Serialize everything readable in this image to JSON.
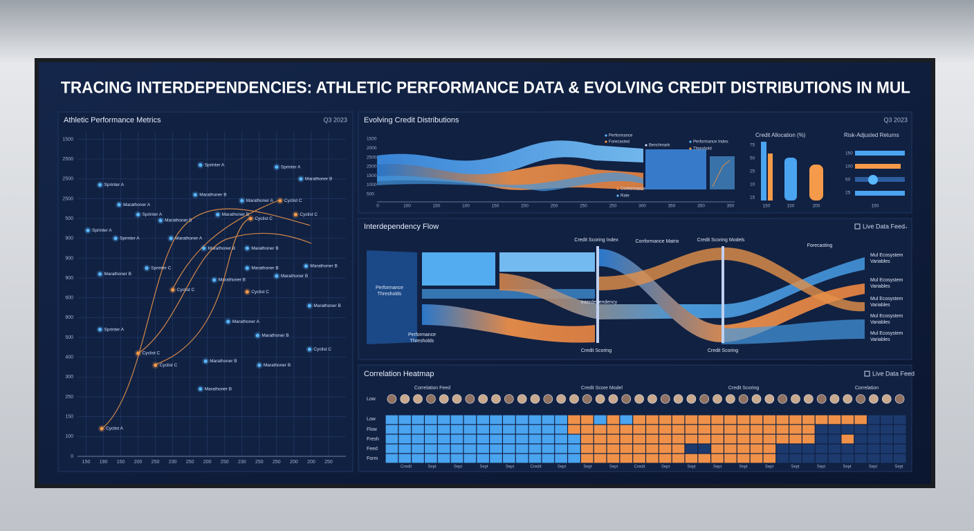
{
  "header": {
    "title": "TRACING INTERDEPENDENCIES: ATHLETIC PERFORMANCE DATA & EVOLVING CREDIT DISTRIBUTIONS IN MUL"
  },
  "chart_data": {
    "type": "scatter",
    "title": "Athletic Performance Metrics",
    "subtitle": "Q3 2023",
    "x": [
      0.8,
      6.6,
      11.0,
      12.4,
      6.3,
      1.9,
      9.0,
      11.2,
      3.0,
      4.3,
      7.6,
      9.5,
      12.1,
      0.1,
      1.7,
      4.9,
      6.8,
      9.3,
      3.5,
      9.3,
      12.7,
      0.8,
      7.4,
      11.0,
      5.0,
      9.3,
      12.9,
      8.2,
      0.8,
      9.9,
      12.9,
      3.0,
      4.0,
      6.9,
      10.0,
      6.6,
      0.9
    ],
    "values": [
      13.7,
      14.7,
      14.6,
      14.0,
      13.2,
      12.7,
      12.9,
      12.9,
      12.2,
      11.9,
      12.2,
      12.0,
      12.2,
      11.4,
      11.0,
      11.0,
      10.5,
      10.5,
      9.5,
      9.5,
      9.6,
      9.2,
      8.9,
      9.1,
      8.4,
      8.3,
      7.6,
      6.8,
      6.4,
      6.1,
      5.4,
      5.2,
      4.6,
      4.8,
      4.6,
      3.4,
      1.4
    ],
    "point_labels": [
      "Sprinter A",
      "Sprinter A",
      "Sprinter A",
      "Marathoner B",
      "Marathoner B",
      "Marathoner A",
      "Marathoner A",
      "Cyclist C",
      "Sprinter A",
      "Marathoner B",
      "Marathoner B",
      "Cyclist C",
      "Cyclist C",
      "Sprinter A",
      "Sprinter A",
      "Marathoner A",
      "Marathoner B",
      "Marathoner B",
      "Sprinter C",
      "Marathoner B",
      "Marathoner B",
      "Marathoner B",
      "Marathoner B",
      "Marathoner B",
      "Cyclist C",
      "Cyclist C",
      "Marathoner B",
      "Marathoner A",
      "Sprinter A",
      "Marathoner B",
      "Cyclist C",
      "Cyclist C",
      "Cyclist C",
      "Marathoner B",
      "Marathoner B",
      "Marathoner B",
      "Cyclist A"
    ],
    "point_colors": [
      "#5ab8ff",
      "#5ab8ff",
      "#5ab8ff",
      "#5ab8ff",
      "#5ab8ff",
      "#5ab8ff",
      "#5ab8ff",
      "#f59a4a",
      "#5ab8ff",
      "#5ab8ff",
      "#5ab8ff",
      "#f59a4a",
      "#f59a4a",
      "#5ab8ff",
      "#5ab8ff",
      "#5ab8ff",
      "#5ab8ff",
      "#5ab8ff",
      "#5ab8ff",
      "#5ab8ff",
      "#5ab8ff",
      "#5ab8ff",
      "#5ab8ff",
      "#5ab8ff",
      "#f59a4a",
      "#f59a4a",
      "#5ab8ff",
      "#5ab8ff",
      "#5ab8ff",
      "#5ab8ff",
      "#5ab8ff",
      "#f59a4a",
      "#f59a4a",
      "#5ab8ff",
      "#5ab8ff",
      "#5ab8ff",
      "#f59a4a"
    ],
    "xlim": [
      -0.5,
      15
    ],
    "ylim": [
      0,
      16.4
    ],
    "xticks": [
      {
        "value": 0,
        "label": "150"
      },
      {
        "value": 1,
        "label": "190"
      },
      {
        "value": 2,
        "label": "150"
      },
      {
        "value": 3,
        "label": "200"
      },
      {
        "value": 4,
        "label": "250"
      },
      {
        "value": 5,
        "label": "230"
      },
      {
        "value": 6,
        "label": "250"
      },
      {
        "value": 7,
        "label": "200"
      },
      {
        "value": 8,
        "label": "250"
      },
      {
        "value": 9,
        "label": "230"
      },
      {
        "value": 10,
        "label": "250"
      },
      {
        "value": 11,
        "label": "250"
      },
      {
        "value": 12,
        "label": "200"
      },
      {
        "value": 13,
        "label": "200"
      },
      {
        "value": 14,
        "label": "250"
      }
    ],
    "yticks": [
      {
        "value": 0,
        "label": "0"
      },
      {
        "value": 1,
        "label": "100"
      },
      {
        "value": 2,
        "label": "150"
      },
      {
        "value": 3,
        "label": "250"
      },
      {
        "value": 4,
        "label": "300"
      },
      {
        "value": 5,
        "label": "400"
      },
      {
        "value": 6,
        "label": "500"
      },
      {
        "value": 7,
        "label": "900"
      },
      {
        "value": 8,
        "label": "600"
      },
      {
        "value": 9,
        "label": "900"
      },
      {
        "value": 10,
        "label": "900"
      },
      {
        "value": 11,
        "label": "900"
      },
      {
        "value": 12,
        "label": "500"
      },
      {
        "value": 13,
        "label": "2500"
      },
      {
        "value": 14,
        "label": "2500"
      },
      {
        "value": 15,
        "label": "2500"
      },
      {
        "value": 16,
        "label": "1500"
      }
    ],
    "grid": true
  },
  "credit_panel": {
    "title": "Evolving Credit Distributions",
    "period": "Q3 2023",
    "y_labels": [
      "1500",
      "2000",
      "2500",
      "2500",
      "1500",
      "1000",
      "500"
    ],
    "x_labels": [
      "0",
      "100",
      "150",
      "100",
      "150",
      "200",
      "250",
      "250",
      "250",
      "300",
      "350",
      "350",
      "350"
    ],
    "legend": [
      "Performance",
      "Forecasted",
      "Benchmark",
      "Performance Index",
      "Threshold",
      "Conformance",
      "Rate"
    ],
    "allocation_title": "Credit Allocation (%)",
    "allocation_y_labels": [
      "75",
      "50",
      "25",
      "10",
      "15"
    ],
    "allocation_x_labels": [
      "150",
      "150",
      "200"
    ],
    "returns_title": "Risk-Adjusted Returns",
    "returns_y_labels": [
      "150",
      "100",
      "50",
      "25"
    ],
    "returns_x_label": "150"
  },
  "flow": {
    "title": "Interdependency Flow",
    "feed": "Live Data Feed",
    "labels": [
      [
        "Performance",
        "Thresholds"
      ],
      [
        "Performance",
        "Thresholds"
      ],
      [
        "Credit Scoring Index"
      ],
      [
        "Conformance Matrix"
      ],
      [
        "Credit Scoring Models"
      ],
      [
        "Forecasting"
      ],
      [
        "Interdependency"
      ],
      [
        "Credit Scoring"
      ],
      [
        "Credit Scoring"
      ]
    ],
    "outputs": [
      [
        "Mul Ecosystem",
        "Variables"
      ],
      [
        "Mul Ecosystem",
        "Variables"
      ],
      [
        "Mul Ecosystem",
        "Variables"
      ],
      [
        "Mul Ecosystem",
        "Variables"
      ],
      [
        "Mul Ecosystem",
        "Variables"
      ]
    ]
  },
  "heatmap": {
    "title": "Correlation Heatmap",
    "feed": "Live Data Feed",
    "groups": [
      "Correlation Feed",
      "Credit Score Model",
      "Credit Scoring",
      "Correlation"
    ],
    "rows": [
      "Low",
      "Low",
      "Flow",
      "Fresh",
      "Feed",
      "Form"
    ],
    "columns": [
      "Credit",
      "Sept",
      "Sept",
      "Sept",
      "Sept",
      "Credit",
      "Sept",
      "Sept",
      "Sept",
      "Credit",
      "Sept",
      "Sept",
      "Sept",
      "Sept",
      "Sept",
      "Sept",
      "Sept",
      "Sept",
      "Sept",
      "Sept"
    ]
  }
}
